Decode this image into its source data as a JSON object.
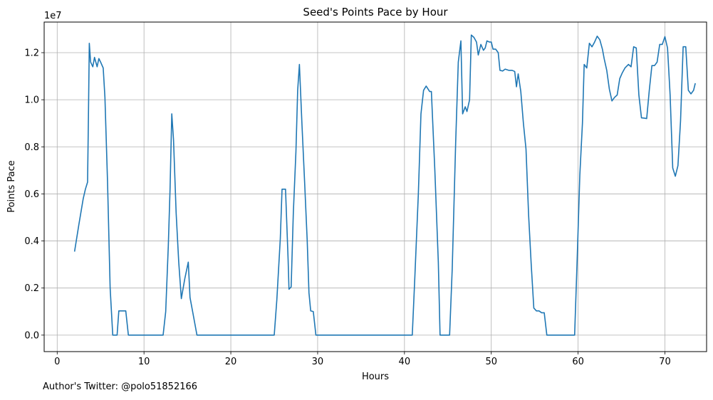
{
  "chart_data": {
    "type": "line",
    "title": "Seed's Points Pace by Hour",
    "xlabel": "Hours",
    "ylabel": "Points Pace",
    "y_scale_label": "1e7",
    "xlim": [
      -1.5,
      74.8
    ],
    "ylim": [
      -700000,
      13300000
    ],
    "x_ticks": [
      0,
      10,
      20,
      30,
      40,
      50,
      60,
      70
    ],
    "x_tick_labels": [
      "0",
      "10",
      "20",
      "30",
      "40",
      "50",
      "60",
      "70"
    ],
    "y_ticks": [
      0,
      2000000,
      4000000,
      6000000,
      8000000,
      10000000,
      12000000
    ],
    "y_tick_labels": [
      "0.0",
      "0.2",
      "0.4",
      "0.6",
      "0.8",
      "1.0",
      "1.2"
    ],
    "grid": true,
    "line_color": "#1f77b4",
    "series": [
      {
        "name": "",
        "points": [
          [
            2.0,
            3550000
          ],
          [
            2.5,
            4700000
          ],
          [
            3.0,
            5800000
          ],
          [
            3.25,
            6200000
          ],
          [
            3.5,
            6500000
          ],
          [
            3.6,
            9300000
          ],
          [
            3.7,
            12400000
          ],
          [
            3.85,
            11600000
          ],
          [
            4.1,
            11400000
          ],
          [
            4.3,
            11800000
          ],
          [
            4.6,
            11400000
          ],
          [
            4.8,
            11750000
          ],
          [
            5.0,
            11600000
          ],
          [
            5.3,
            11350000
          ],
          [
            5.5,
            10100000
          ],
          [
            5.8,
            6500000
          ],
          [
            6.1,
            2000000
          ],
          [
            6.4,
            0
          ],
          [
            6.9,
            0
          ],
          [
            7.1,
            1030000
          ],
          [
            7.5,
            1030000
          ],
          [
            7.9,
            1030000
          ],
          [
            8.2,
            0
          ],
          [
            10.0,
            0
          ],
          [
            11.0,
            0
          ],
          [
            12.2,
            0
          ],
          [
            12.5,
            1000000
          ],
          [
            12.8,
            3800000
          ],
          [
            13.0,
            6200000
          ],
          [
            13.2,
            9400000
          ],
          [
            13.4,
            8300000
          ],
          [
            13.7,
            5200000
          ],
          [
            14.0,
            3100000
          ],
          [
            14.3,
            1550000
          ],
          [
            14.7,
            2400000
          ],
          [
            15.1,
            3100000
          ],
          [
            15.3,
            1600000
          ],
          [
            15.7,
            800000
          ],
          [
            16.1,
            0
          ],
          [
            20.0,
            0
          ],
          [
            25.0,
            0
          ],
          [
            25.3,
            1500000
          ],
          [
            25.7,
            4100000
          ],
          [
            25.9,
            6200000
          ],
          [
            26.3,
            6200000
          ],
          [
            26.6,
            3200000
          ],
          [
            26.7,
            1950000
          ],
          [
            26.95,
            2050000
          ],
          [
            27.2,
            5200000
          ],
          [
            27.5,
            7800000
          ],
          [
            27.7,
            10400000
          ],
          [
            27.9,
            11500000
          ],
          [
            28.2,
            8900000
          ],
          [
            28.5,
            6500000
          ],
          [
            28.8,
            4000000
          ],
          [
            29.0,
            1800000
          ],
          [
            29.2,
            1030000
          ],
          [
            29.5,
            1000000
          ],
          [
            29.8,
            0
          ],
          [
            35.0,
            0
          ],
          [
            40.9,
            0
          ],
          [
            41.2,
            2500000
          ],
          [
            41.6,
            6000000
          ],
          [
            41.9,
            9400000
          ],
          [
            42.2,
            10400000
          ],
          [
            42.5,
            10580000
          ],
          [
            42.9,
            10350000
          ],
          [
            43.1,
            10350000
          ],
          [
            43.5,
            7000000
          ],
          [
            43.9,
            3100000
          ],
          [
            44.1,
            0
          ],
          [
            45.0,
            0
          ],
          [
            45.2,
            0
          ],
          [
            45.5,
            2800000
          ],
          [
            45.9,
            8200000
          ],
          [
            46.2,
            11600000
          ],
          [
            46.5,
            12500000
          ],
          [
            46.7,
            9400000
          ],
          [
            47.0,
            9700000
          ],
          [
            47.2,
            9500000
          ],
          [
            47.5,
            10000000
          ],
          [
            47.7,
            12750000
          ],
          [
            48.0,
            12650000
          ],
          [
            48.3,
            12450000
          ],
          [
            48.5,
            11900000
          ],
          [
            48.8,
            12350000
          ],
          [
            49.1,
            12100000
          ],
          [
            49.3,
            12200000
          ],
          [
            49.5,
            12500000
          ],
          [
            49.8,
            12450000
          ],
          [
            50.0,
            12450000
          ],
          [
            50.2,
            12150000
          ],
          [
            50.5,
            12150000
          ],
          [
            50.8,
            12000000
          ],
          [
            51.0,
            11250000
          ],
          [
            51.3,
            11220000
          ],
          [
            51.6,
            11300000
          ],
          [
            52.0,
            11250000
          ],
          [
            52.4,
            11250000
          ],
          [
            52.7,
            11200000
          ],
          [
            52.9,
            10550000
          ],
          [
            53.1,
            11100000
          ],
          [
            53.4,
            10350000
          ],
          [
            53.7,
            9000000
          ],
          [
            54.0,
            7900000
          ],
          [
            54.3,
            5100000
          ],
          [
            54.6,
            3000000
          ],
          [
            54.9,
            1150000
          ],
          [
            55.2,
            1030000
          ],
          [
            55.5,
            1030000
          ],
          [
            55.8,
            950000
          ],
          [
            56.1,
            950000
          ],
          [
            56.4,
            0
          ],
          [
            58.0,
            0
          ],
          [
            59.6,
            0
          ],
          [
            59.9,
            3300000
          ],
          [
            60.2,
            6800000
          ],
          [
            60.5,
            9000000
          ],
          [
            60.7,
            11500000
          ],
          [
            61.0,
            11350000
          ],
          [
            61.3,
            12400000
          ],
          [
            61.6,
            12250000
          ],
          [
            61.9,
            12450000
          ],
          [
            62.2,
            12700000
          ],
          [
            62.5,
            12550000
          ],
          [
            62.8,
            12150000
          ],
          [
            63.0,
            11750000
          ],
          [
            63.3,
            11250000
          ],
          [
            63.6,
            10450000
          ],
          [
            63.9,
            9950000
          ],
          [
            64.2,
            10100000
          ],
          [
            64.5,
            10200000
          ],
          [
            64.8,
            10900000
          ],
          [
            65.1,
            11150000
          ],
          [
            65.4,
            11350000
          ],
          [
            65.8,
            11500000
          ],
          [
            66.1,
            11400000
          ],
          [
            66.4,
            12250000
          ],
          [
            66.7,
            12200000
          ],
          [
            67.0,
            10200000
          ],
          [
            67.3,
            9230000
          ],
          [
            67.6,
            9220000
          ],
          [
            67.9,
            9200000
          ],
          [
            68.2,
            10400000
          ],
          [
            68.5,
            11450000
          ],
          [
            68.8,
            11450000
          ],
          [
            69.1,
            11600000
          ],
          [
            69.4,
            12350000
          ],
          [
            69.7,
            12350000
          ],
          [
            70.0,
            12680000
          ],
          [
            70.3,
            12200000
          ],
          [
            70.6,
            10200000
          ],
          [
            70.9,
            7100000
          ],
          [
            71.2,
            6750000
          ],
          [
            71.5,
            7200000
          ],
          [
            71.8,
            9100000
          ],
          [
            72.1,
            12250000
          ],
          [
            72.4,
            12250000
          ],
          [
            72.7,
            10400000
          ],
          [
            73.0,
            10250000
          ],
          [
            73.3,
            10400000
          ],
          [
            73.5,
            10700000
          ]
        ]
      }
    ]
  },
  "footer_note": "Author's Twitter: @polo51852166"
}
